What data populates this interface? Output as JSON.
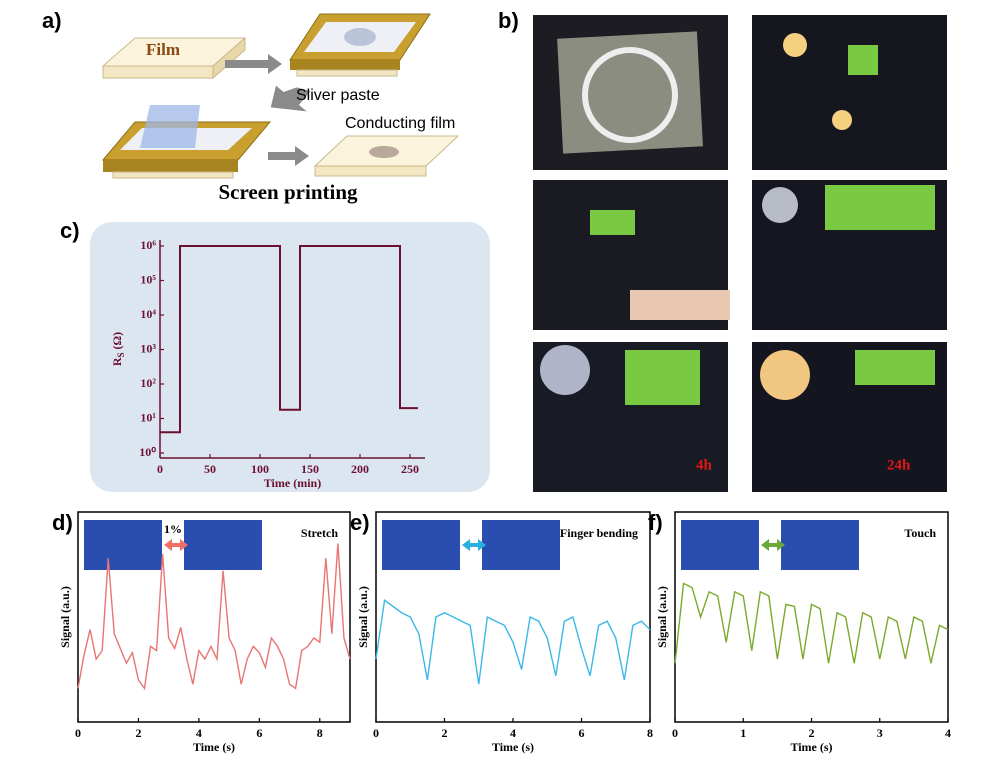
{
  "panel_a": {
    "label": "a)",
    "film": "Film",
    "paste": "Sliver paste",
    "conducting": "Conducting film",
    "caption": "Screen printing"
  },
  "panel_b": {
    "label": "b)",
    "photo_labels": [
      "4h",
      "24h"
    ]
  },
  "chart_data": [
    {
      "type": "line",
      "label": "c)",
      "ylabel": "R",
      "ylabel_sub": "S",
      "ylabel_unit": "(Ω)",
      "xlabel": "Time (min)",
      "x": [
        0,
        20,
        20,
        120,
        120,
        140,
        140,
        240,
        240,
        258
      ],
      "values": [
        4,
        4,
        1000000,
        1000000,
        18,
        18,
        1000000,
        1000000,
        20,
        20
      ],
      "color": "#6b1030",
      "log_y": true,
      "xlim": [
        0,
        260
      ],
      "xticks": [
        0,
        50,
        100,
        150,
        200,
        250
      ],
      "ylim": [
        1,
        1000000
      ],
      "yticks": [
        {
          "value": 1,
          "label": "10⁰"
        },
        {
          "value": 10,
          "label": "10¹"
        },
        {
          "value": 100,
          "label": "10²"
        },
        {
          "value": 1000,
          "label": "10³"
        },
        {
          "value": 10000,
          "label": "10⁴"
        },
        {
          "value": 100000,
          "label": "10⁵"
        },
        {
          "value": 1000000,
          "label": "10⁶"
        }
      ]
    },
    {
      "type": "line",
      "label": "d)",
      "annotation": "Stretch",
      "inset_text": "1%",
      "ylabel": "Signal (a.u.)",
      "xlabel": "Time (s)",
      "color": "#e87474",
      "x": [
        0,
        0.2,
        0.4,
        0.6,
        0.8,
        1.0,
        1.2,
        1.4,
        1.6,
        1.8,
        2.0,
        2.2,
        2.4,
        2.6,
        2.8,
        3.0,
        3.2,
        3.4,
        3.6,
        3.8,
        4.0,
        4.2,
        4.4,
        4.6,
        4.8,
        5.0,
        5.2,
        5.4,
        5.6,
        5.8,
        6.0,
        6.2,
        6.4,
        6.6,
        6.8,
        7.0,
        7.2,
        7.4,
        7.6,
        7.8,
        8.0,
        8.2,
        8.4,
        8.6,
        8.8,
        9.0
      ],
      "values": [
        0.16,
        0.32,
        0.44,
        0.3,
        0.34,
        0.78,
        0.42,
        0.35,
        0.28,
        0.33,
        0.2,
        0.16,
        0.36,
        0.34,
        0.8,
        0.4,
        0.35,
        0.45,
        0.3,
        0.18,
        0.34,
        0.3,
        0.36,
        0.3,
        0.72,
        0.4,
        0.34,
        0.18,
        0.3,
        0.36,
        0.33,
        0.26,
        0.4,
        0.36,
        0.3,
        0.18,
        0.16,
        0.34,
        0.36,
        0.4,
        0.38,
        0.78,
        0.42,
        0.85,
        0.4,
        0.3
      ],
      "xlim": [
        0,
        9
      ],
      "xticks": [
        0,
        2,
        4,
        6,
        8
      ],
      "ylim": [
        0,
        1
      ]
    },
    {
      "type": "line",
      "label": "e)",
      "annotation": "Finger bending",
      "ylabel": "Signal (a.u.)",
      "xlabel": "Time (s)",
      "color": "#3ab8e8",
      "x": [
        0,
        0.25,
        0.5,
        0.75,
        1,
        1.25,
        1.5,
        1.75,
        2,
        2.25,
        2.5,
        2.75,
        3,
        3.25,
        3.5,
        3.75,
        4,
        4.25,
        4.5,
        4.75,
        5,
        5.25,
        5.5,
        5.75,
        6,
        6.25,
        6.5,
        6.75,
        7,
        7.25,
        7.5,
        7.75,
        8
      ],
      "values": [
        0.3,
        0.58,
        0.55,
        0.52,
        0.5,
        0.42,
        0.2,
        0.5,
        0.52,
        0.5,
        0.48,
        0.46,
        0.18,
        0.5,
        0.48,
        0.46,
        0.38,
        0.25,
        0.5,
        0.48,
        0.4,
        0.22,
        0.48,
        0.5,
        0.35,
        0.22,
        0.46,
        0.48,
        0.4,
        0.2,
        0.46,
        0.48,
        0.44
      ],
      "xlim": [
        0,
        8
      ],
      "xticks": [
        0,
        2,
        4,
        6,
        8
      ],
      "ylim": [
        0,
        1
      ]
    },
    {
      "type": "line",
      "label": "f)",
      "annotation": "Touch",
      "ylabel": "Signal (a.u.)",
      "xlabel": "Time (s)",
      "color": "#7aaa2a",
      "x": [
        0,
        0.125,
        0.25,
        0.375,
        0.5,
        0.625,
        0.75,
        0.875,
        1,
        1.125,
        1.25,
        1.375,
        1.5,
        1.625,
        1.75,
        1.875,
        2,
        2.125,
        2.25,
        2.375,
        2.5,
        2.625,
        2.75,
        2.875,
        3,
        3.125,
        3.25,
        3.375,
        3.5,
        3.625,
        3.75,
        3.875,
        4
      ],
      "values": [
        0.28,
        0.66,
        0.64,
        0.5,
        0.62,
        0.6,
        0.38,
        0.62,
        0.6,
        0.34,
        0.62,
        0.6,
        0.3,
        0.56,
        0.55,
        0.3,
        0.56,
        0.54,
        0.28,
        0.52,
        0.5,
        0.28,
        0.52,
        0.5,
        0.3,
        0.5,
        0.48,
        0.3,
        0.5,
        0.48,
        0.28,
        0.46,
        0.44
      ],
      "xlim": [
        0,
        4
      ],
      "xticks": [
        0,
        1,
        2,
        3,
        4
      ],
      "ylim": [
        0,
        1
      ]
    }
  ]
}
